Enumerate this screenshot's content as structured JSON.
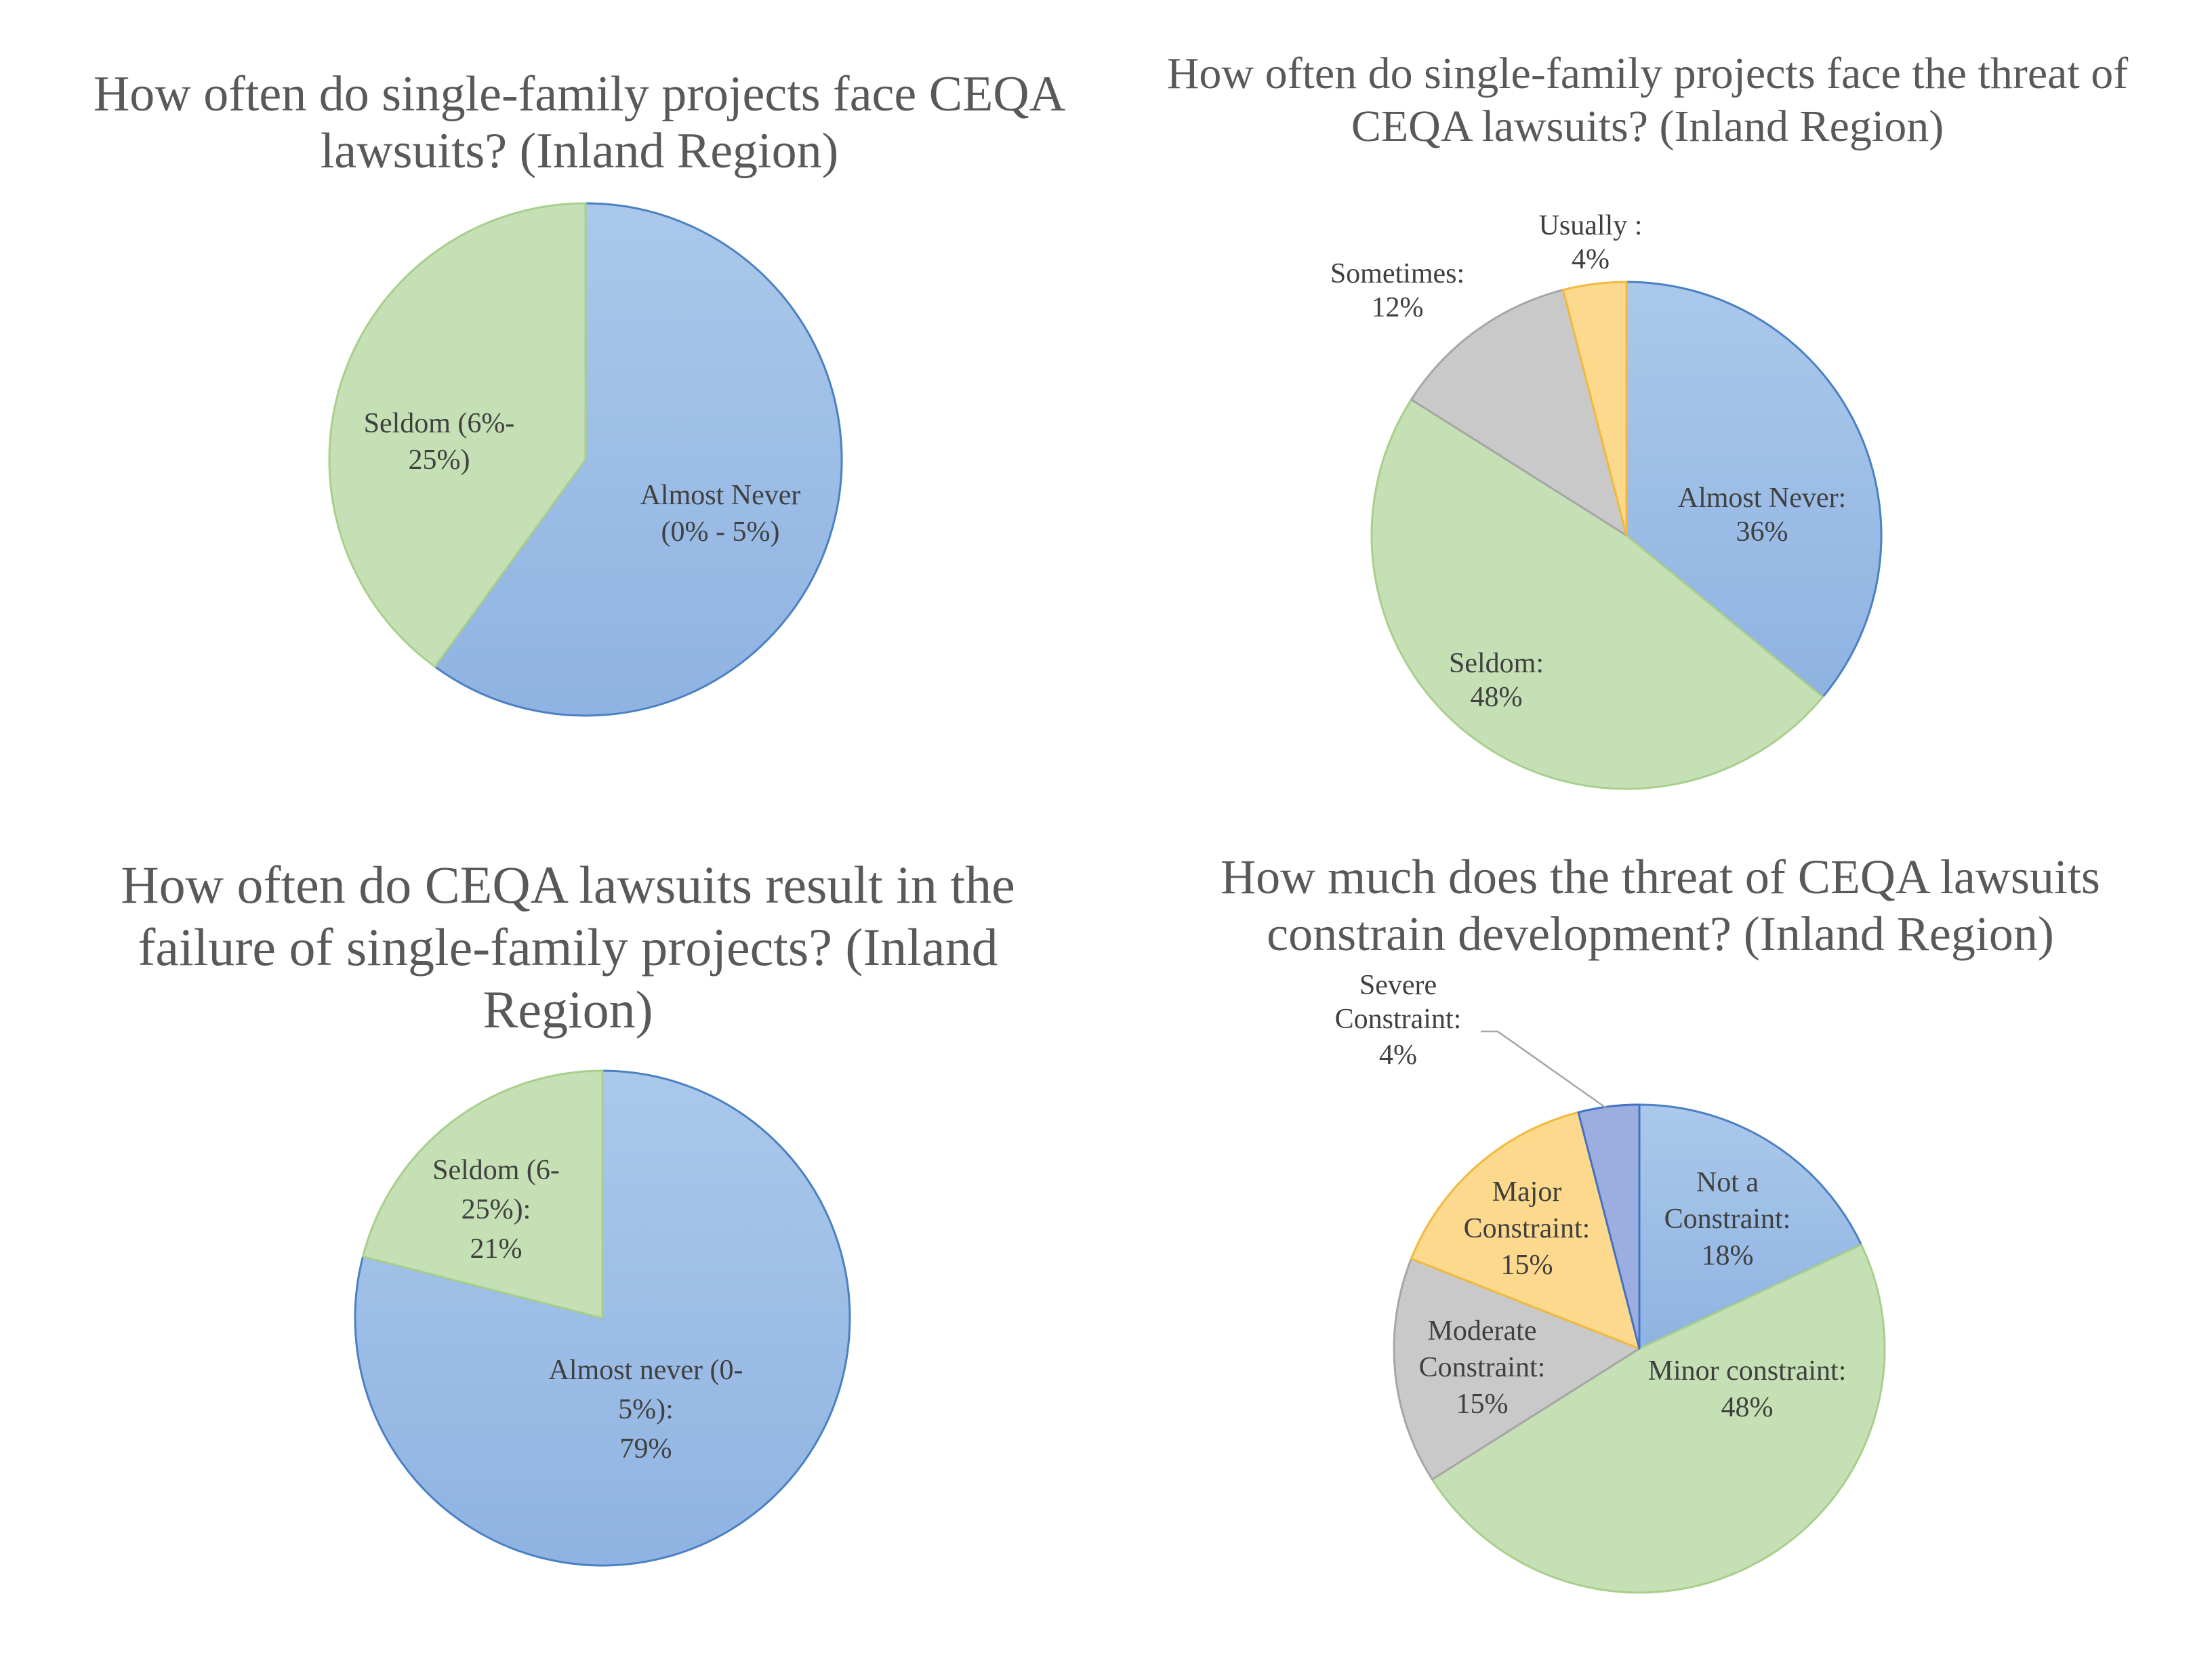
{
  "colors": {
    "blue": "#9dc0e6",
    "blue_stroke": "#4a80c4",
    "green": "#c5e0b4",
    "green_stroke": "#a8cf8c",
    "gray": "#c9c9c9",
    "gray_stroke": "#a6a6a6",
    "yellow": "#fcd98c",
    "yellow_stroke": "#f2b93f",
    "indigo": "#9caedf",
    "indigo_stroke": "#4472c4",
    "text": "#595959"
  },
  "chart_data": [
    {
      "type": "pie",
      "title": "How often do single-family projects face CEQA lawsuits? (Inland Region)",
      "title_lines": [
        "How often do single-family projects face CEQA",
        "lawsuits? (Inland Region)"
      ],
      "slices": [
        {
          "name": "Almost Never (0% - 5%)",
          "value": 60,
          "color_key": "blue",
          "label_lines": [
            "Almost Never",
            "(0% - 5%)"
          ]
        },
        {
          "name": "Seldom (6%-25%)",
          "value": 40,
          "color_key": "green",
          "label_lines": [
            "Seldom (6%-",
            "25%)"
          ]
        }
      ]
    },
    {
      "type": "pie",
      "title": "How often do single-family projects face the threat of CEQA lawsuits? (Inland Region)",
      "title_lines": [
        "How often do single-family projects face the threat of",
        "CEQA lawsuits? (Inland Region)"
      ],
      "slices": [
        {
          "name": "Almost Never",
          "value": 36,
          "color_key": "blue",
          "label_lines": [
            "Almost Never:",
            "36%"
          ]
        },
        {
          "name": "Seldom",
          "value": 48,
          "color_key": "green",
          "label_lines": [
            "Seldom:",
            "48%"
          ]
        },
        {
          "name": "Sometimes",
          "value": 12,
          "color_key": "gray",
          "label_lines": [
            "Sometimes:",
            "12%"
          ]
        },
        {
          "name": "Usually",
          "value": 4,
          "color_key": "yellow",
          "label_lines": [
            "Usually :",
            "4%"
          ]
        }
      ]
    },
    {
      "type": "pie",
      "title": "How often do CEQA lawsuits result in the failure of single-family projects? (Inland Region)",
      "title_lines": [
        "How often do CEQA lawsuits result in the",
        "failure of single-family projects? (Inland",
        "Region)"
      ],
      "slices": [
        {
          "name": "Almost never (0-5%)",
          "value": 79,
          "color_key": "blue",
          "label_lines": [
            "Almost never (0-",
            "5%):",
            "79%"
          ]
        },
        {
          "name": "Seldom (6-25%)",
          "value": 21,
          "color_key": "green",
          "label_lines": [
            "Seldom (6-",
            "25%):",
            "21%"
          ]
        }
      ]
    },
    {
      "type": "pie",
      "title": "How much does the threat of CEQA lawsuits constrain development? (Inland Region)",
      "title_lines": [
        "How much does the threat of CEQA lawsuits",
        "constrain development? (Inland Region)"
      ],
      "slices": [
        {
          "name": "Not a Constraint",
          "value": 18,
          "color_key": "blue",
          "label_lines": [
            "Not a",
            "Constraint:",
            "18%"
          ]
        },
        {
          "name": "Minor constraint",
          "value": 48,
          "color_key": "green",
          "label_lines": [
            "Minor constraint:",
            "48%"
          ]
        },
        {
          "name": "Moderate Constraint",
          "value": 15,
          "color_key": "gray",
          "label_lines": [
            "Moderate",
            "Constraint:",
            "15%"
          ]
        },
        {
          "name": "Major Constraint",
          "value": 15,
          "color_key": "yellow",
          "label_lines": [
            "Major",
            "Constraint:",
            "15%"
          ]
        },
        {
          "name": "Severe Constraint",
          "value": 4,
          "color_key": "indigo",
          "label_lines": [
            "Severe",
            "Constraint:",
            "4%"
          ]
        }
      ]
    }
  ]
}
